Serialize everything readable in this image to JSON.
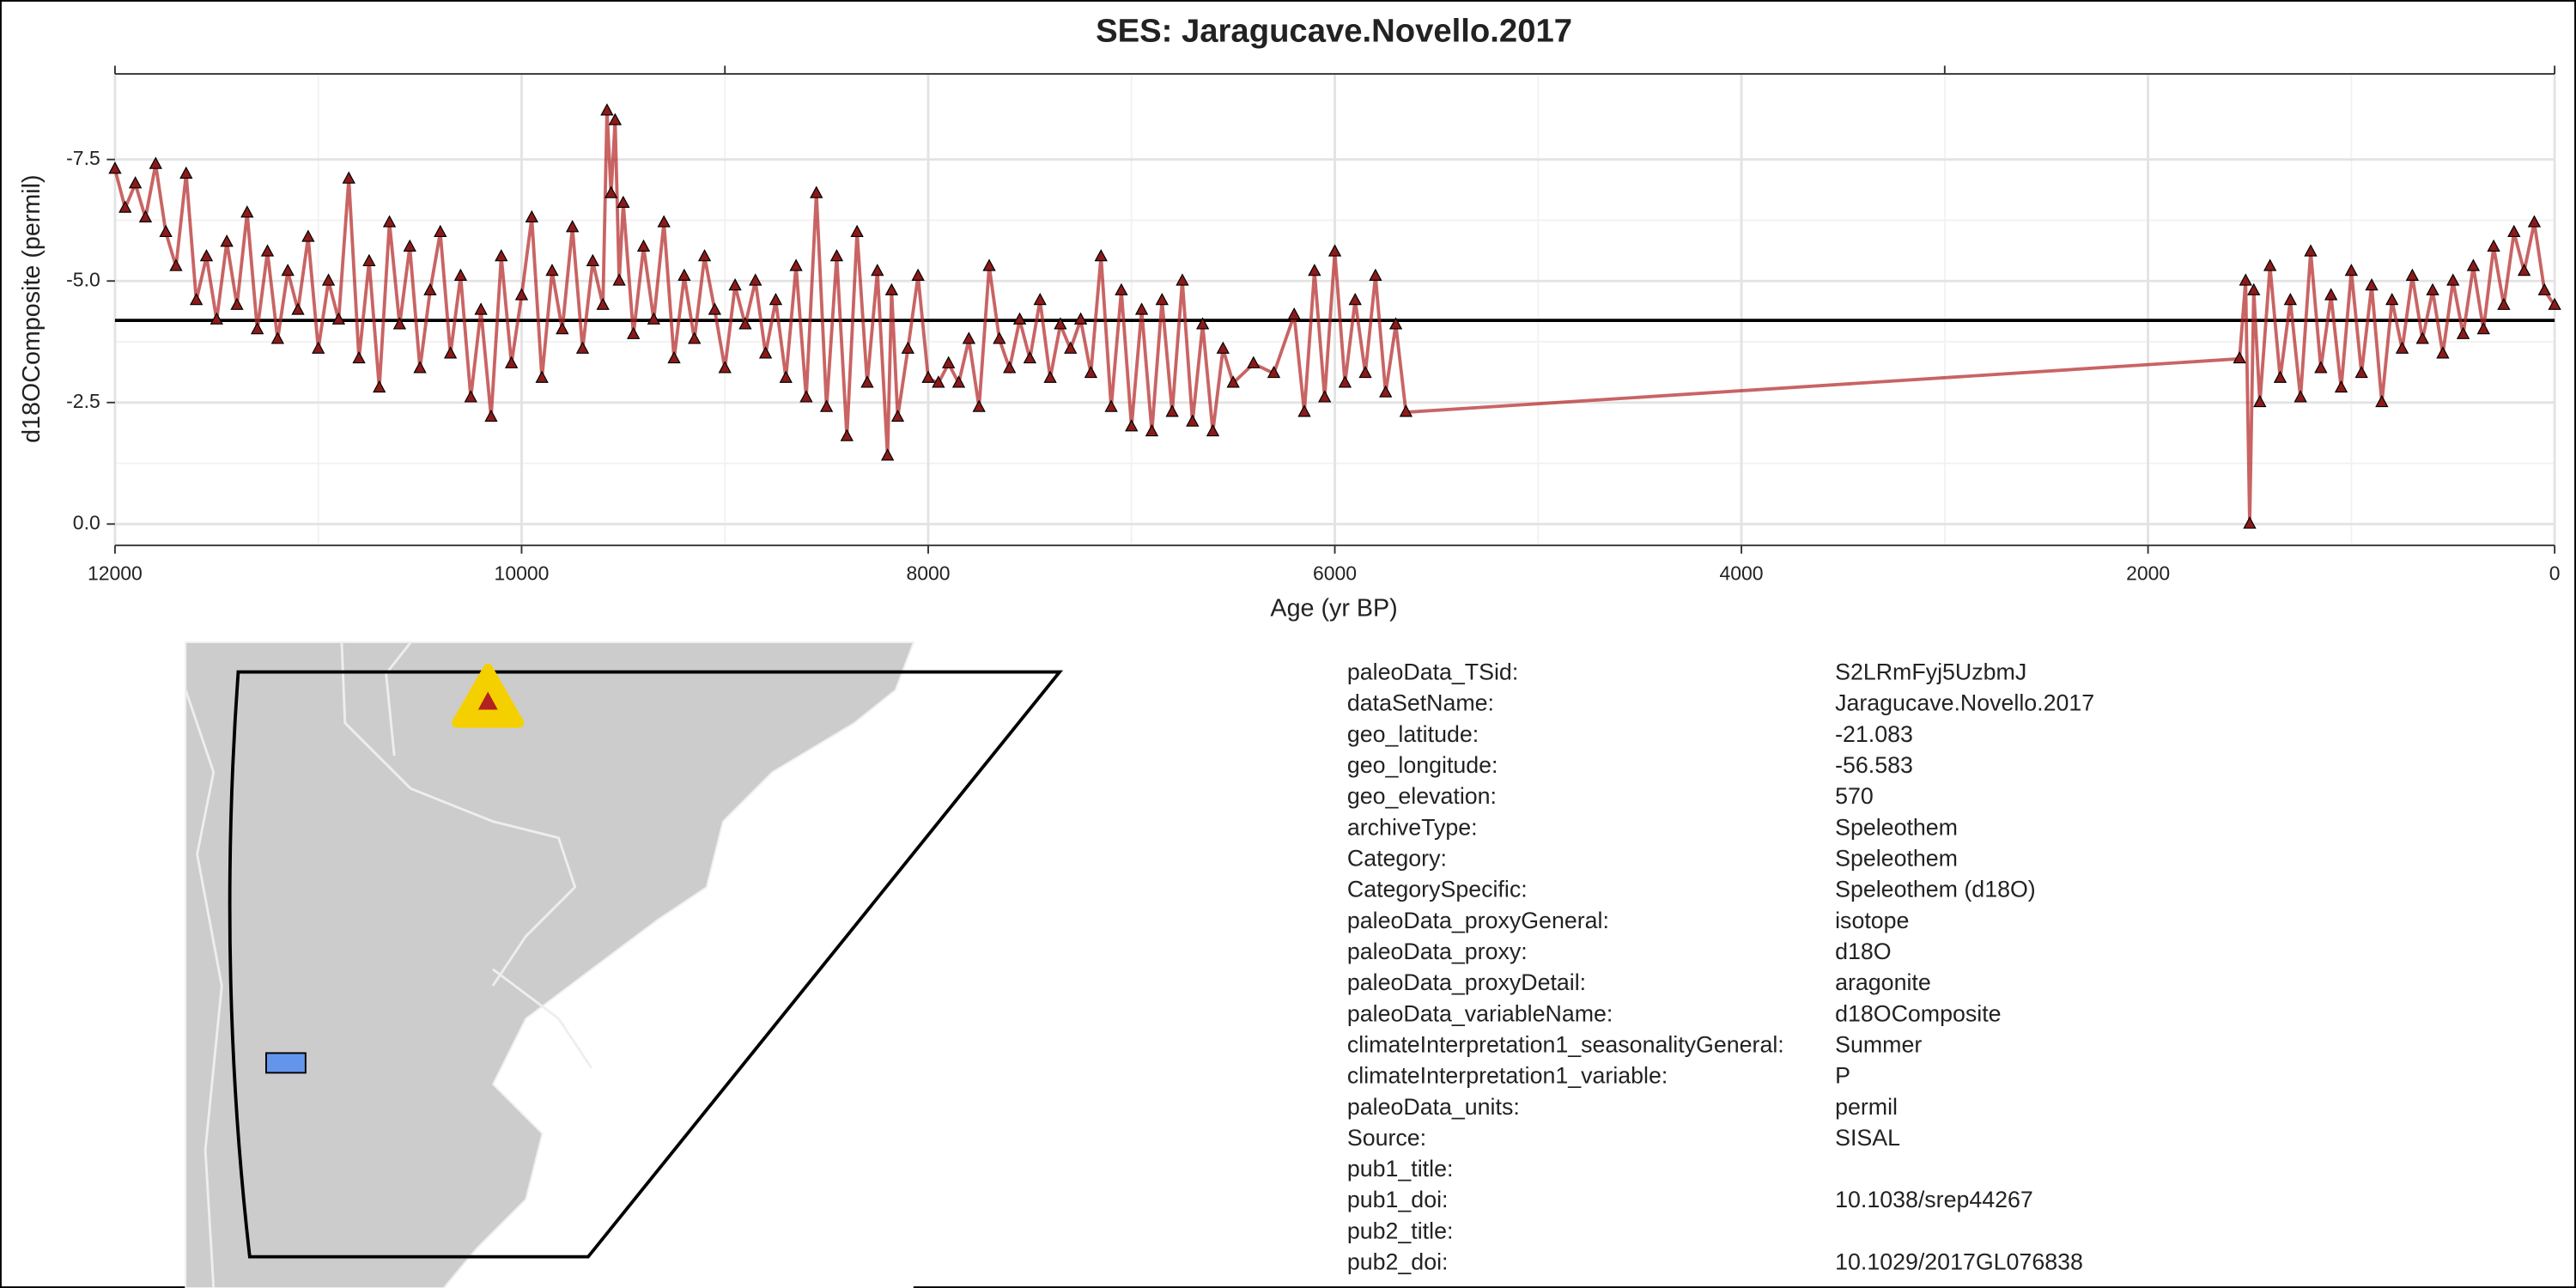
{
  "chart_data": {
    "type": "line",
    "title": "SES: Jaragucave.Novello.2017",
    "x_label": "Age (yr BP)",
    "y_label": "d18OComposite (permil)",
    "xlim": [
      12000,
      0
    ],
    "xticks": [
      12000,
      10000,
      8000,
      6000,
      4000,
      2000,
      0
    ],
    "x2ticks": [
      12000,
      9000,
      3000,
      0
    ],
    "ylim": [
      0.44,
      -9.26
    ],
    "yticks": [
      {
        "value": 0,
        "label": "0.0"
      },
      {
        "value": -2.5,
        "label": "-2.5"
      },
      {
        "value": -5,
        "label": "-5.0"
      },
      {
        "value": -7.5,
        "label": "-7.5"
      }
    ],
    "grid": true,
    "hline": -4.19,
    "x": [
      12000,
      11950,
      11900,
      11850,
      11800,
      11750,
      11700,
      11650,
      11600,
      11550,
      11500,
      11450,
      11400,
      11350,
      11300,
      11250,
      11200,
      11150,
      11100,
      11050,
      11000,
      10950,
      10900,
      10850,
      10800,
      10750,
      10700,
      10650,
      10600,
      10550,
      10500,
      10450,
      10400,
      10350,
      10300,
      10250,
      10200,
      10150,
      10100,
      10050,
      10000,
      9950,
      9900,
      9850,
      9800,
      9750,
      9700,
      9650,
      9600,
      9580,
      9560,
      9540,
      9520,
      9500,
      9450,
      9400,
      9350,
      9300,
      9250,
      9200,
      9150,
      9100,
      9050,
      9000,
      8950,
      8900,
      8850,
      8800,
      8750,
      8700,
      8650,
      8600,
      8550,
      8500,
      8450,
      8400,
      8350,
      8300,
      8250,
      8200,
      8180,
      8150,
      8100,
      8050,
      8000,
      7950,
      7900,
      7850,
      7800,
      7750,
      7700,
      7650,
      7600,
      7550,
      7500,
      7450,
      7400,
      7350,
      7300,
      7250,
      7200,
      7150,
      7100,
      7050,
      7000,
      6950,
      6900,
      6850,
      6800,
      6750,
      6700,
      6650,
      6600,
      6550,
      6500,
      6400,
      6300,
      6200,
      6150,
      6100,
      6050,
      6000,
      5950,
      5900,
      5850,
      5800,
      5750,
      5700,
      5650,
      1550,
      1520,
      1500,
      1480,
      1450,
      1400,
      1350,
      1300,
      1250,
      1200,
      1150,
      1100,
      1050,
      1000,
      950,
      900,
      850,
      800,
      750,
      700,
      650,
      600,
      550,
      500,
      450,
      400,
      350,
      300,
      250,
      200,
      150,
      100,
      50,
      0
    ],
    "series": [
      {
        "name": "d18OComposite",
        "color": "#b22222",
        "marker_color": "#8b1a1a",
        "values": [
          -7.3,
          -6.5,
          -7.0,
          -6.3,
          -7.4,
          -6.0,
          -5.3,
          -7.2,
          -4.6,
          -5.5,
          -4.2,
          -5.8,
          -4.5,
          -6.4,
          -4.0,
          -5.6,
          -3.8,
          -5.2,
          -4.4,
          -5.9,
          -3.6,
          -5.0,
          -4.2,
          -7.1,
          -3.4,
          -5.4,
          -2.8,
          -6.2,
          -4.1,
          -5.7,
          -3.2,
          -4.8,
          -6.0,
          -3.5,
          -5.1,
          -2.6,
          -4.4,
          -2.2,
          -5.5,
          -3.3,
          -4.7,
          -6.3,
          -3.0,
          -5.2,
          -4.0,
          -6.1,
          -3.6,
          -5.4,
          -4.5,
          -8.5,
          -6.8,
          -8.3,
          -5.0,
          -6.6,
          -3.9,
          -5.7,
          -4.2,
          -6.2,
          -3.4,
          -5.1,
          -3.8,
          -5.5,
          -4.4,
          -3.2,
          -4.9,
          -4.1,
          -5.0,
          -3.5,
          -4.6,
          -3.0,
          -5.3,
          -2.6,
          -6.8,
          -2.4,
          -5.5,
          -1.8,
          -6.0,
          -2.9,
          -5.2,
          -1.4,
          -4.8,
          -2.2,
          -3.6,
          -5.1,
          -3.0,
          -2.9,
          -3.3,
          -2.9,
          -3.8,
          -2.4,
          -5.3,
          -3.8,
          -3.2,
          -4.2,
          -3.4,
          -4.6,
          -3.0,
          -4.1,
          -3.6,
          -4.2,
          -3.1,
          -5.5,
          -2.4,
          -4.8,
          -2.0,
          -4.4,
          -1.9,
          -4.6,
          -2.3,
          -5.0,
          -2.1,
          -4.1,
          -1.9,
          -3.6,
          -2.9,
          -3.3,
          -3.1,
          -4.3,
          -2.3,
          -5.2,
          -2.6,
          -5.6,
          -2.9,
          -4.6,
          -3.1,
          -5.1,
          -2.7,
          -4.1,
          -2.3,
          -3.4,
          -5.0,
          0.0,
          -4.8,
          -2.5,
          -5.3,
          -3.0,
          -4.6,
          -2.6,
          -5.6,
          -3.2,
          -4.7,
          -2.8,
          -5.2,
          -3.1,
          -4.9,
          -2.5,
          -4.6,
          -3.6,
          -5.1,
          -3.8,
          -4.8,
          -3.5,
          -5.0,
          -3.9,
          -5.3,
          -4.0,
          -5.7,
          -4.5,
          -6.0,
          -5.2,
          -6.2,
          -4.8,
          -4.5
        ]
      }
    ]
  },
  "metadata": {
    "rows": [
      {
        "key": "paleoData_TSid:",
        "value": "S2LRmFyj5UzbmJ"
      },
      {
        "key": "dataSetName:",
        "value": "Jaragucave.Novello.2017"
      },
      {
        "key": "geo_latitude:",
        "value": "-21.083"
      },
      {
        "key": "geo_longitude:",
        "value": "-56.583"
      },
      {
        "key": "geo_elevation:",
        "value": "570"
      },
      {
        "key": "archiveType:",
        "value": "Speleothem"
      },
      {
        "key": "Category:",
        "value": "Speleothem"
      },
      {
        "key": "CategorySpecific:",
        "value": "Speleothem (d18O)"
      },
      {
        "key": "paleoData_proxyGeneral:",
        "value": "isotope"
      },
      {
        "key": "paleoData_proxy:",
        "value": "d18O"
      },
      {
        "key": "paleoData_proxyDetail:",
        "value": "aragonite"
      },
      {
        "key": "paleoData_variableName:",
        "value": "d18OComposite"
      },
      {
        "key": "climateInterpretation1_seasonalityGeneral:",
        "value": "Summer"
      },
      {
        "key": "climateInterpretation1_variable:",
        "value": "P"
      },
      {
        "key": "paleoData_units:",
        "value": "permil"
      },
      {
        "key": "Source:",
        "value": "SISAL"
      },
      {
        "key": "pub1_title:"
      },
      {
        "key": "pub1_doi:",
        "value": "10.1038/srep44267"
      },
      {
        "key": "pub2_title:"
      },
      {
        "key": "pub2_doi:",
        "value": "10.1029/2017GL076838"
      }
    ]
  }
}
